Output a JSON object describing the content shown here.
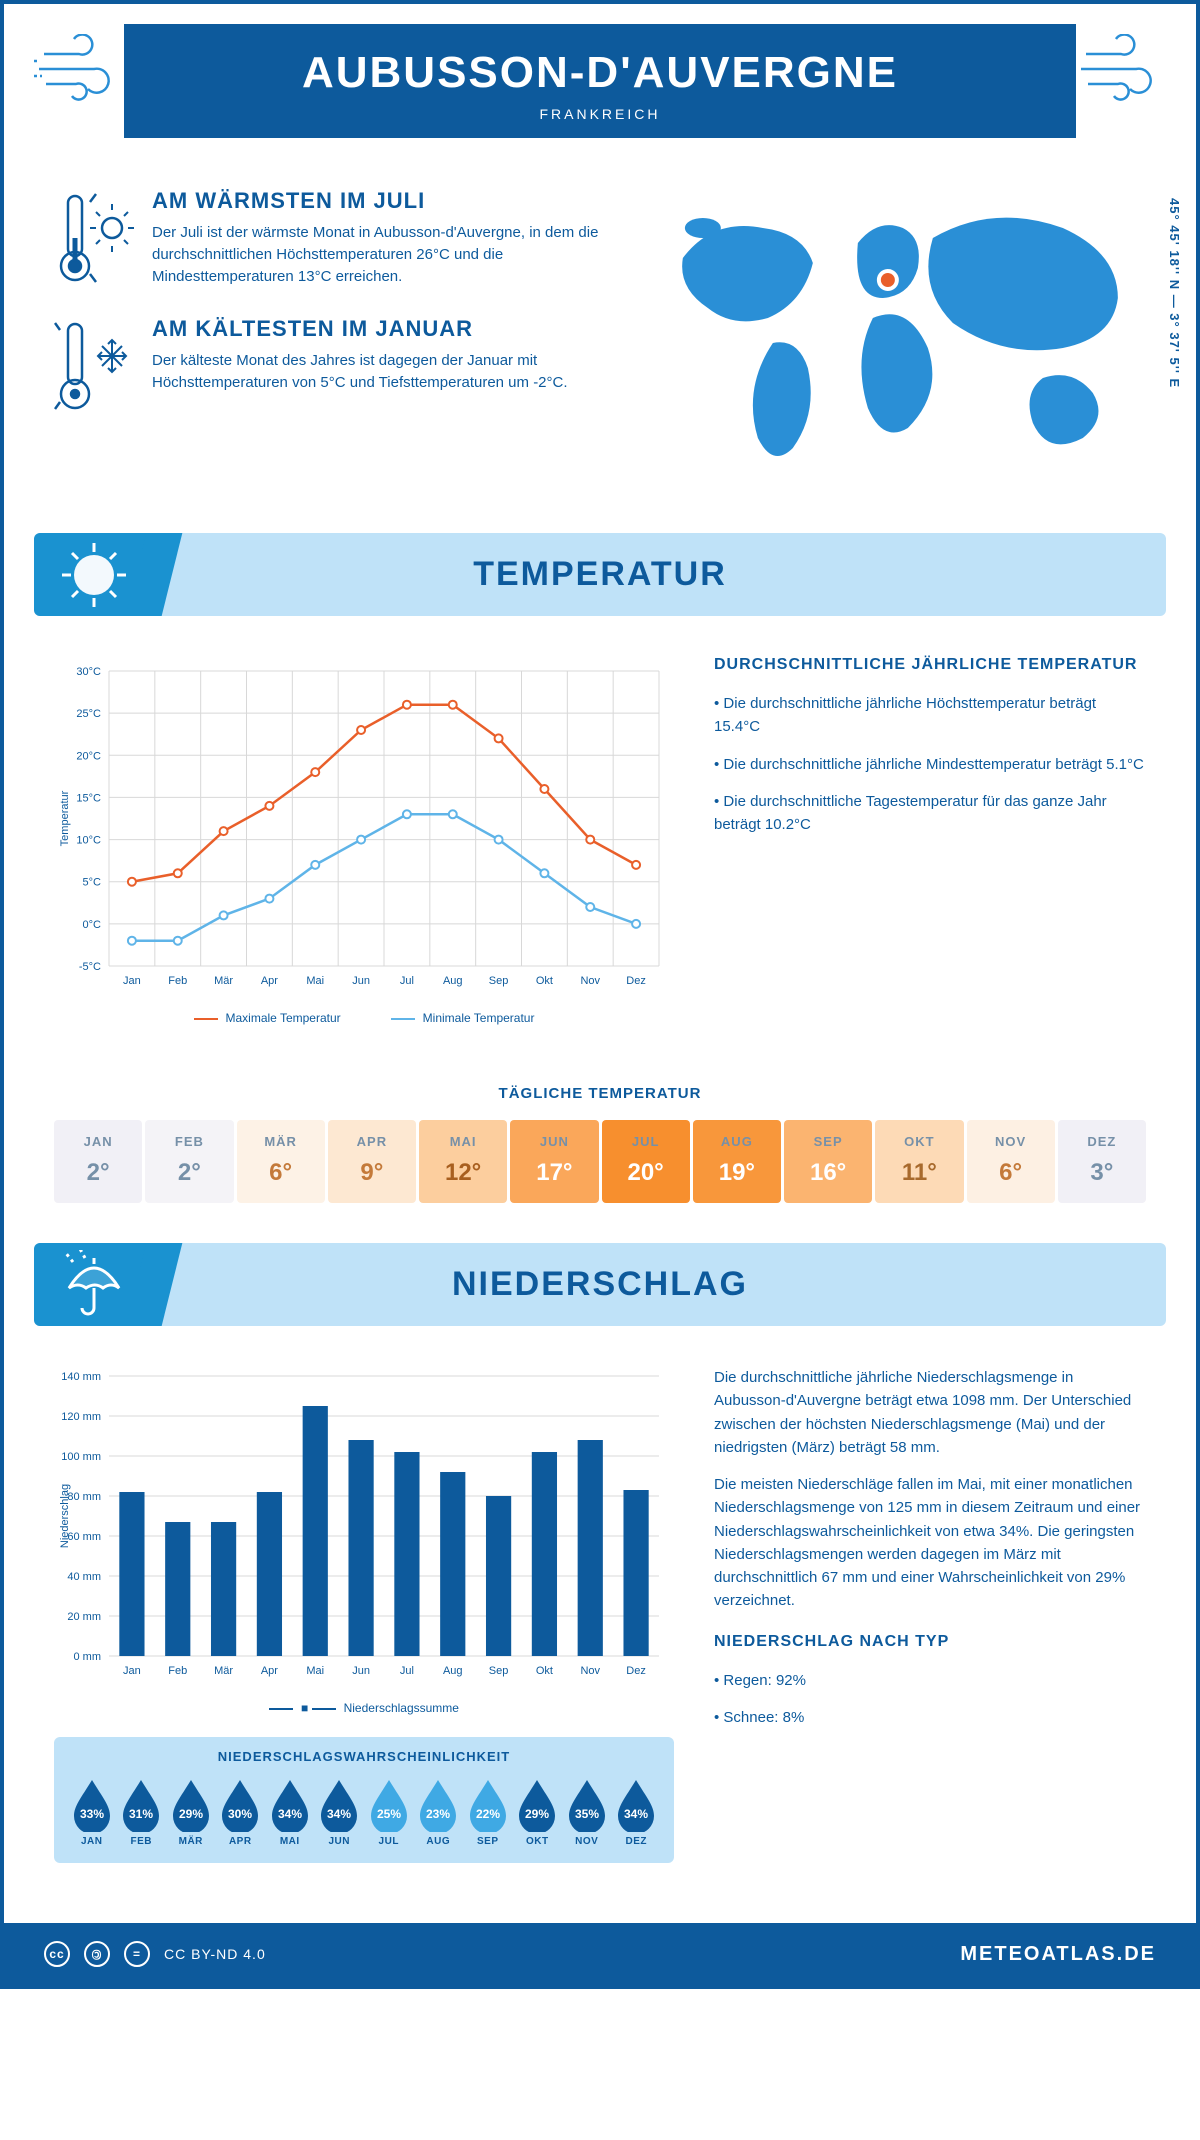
{
  "header": {
    "title": "AUBUSSON-D'AUVERGNE",
    "subtitle": "FRANKREICH"
  },
  "coords": "45° 45' 18'' N — 3° 37' 5'' E",
  "intro": {
    "warm": {
      "title": "AM WÄRMSTEN IM JULI",
      "text": "Der Juli ist der wärmste Monat in Aubusson-d'Auvergne, in dem die durchschnittlichen Höchsttemperaturen 26°C und die Mindesttemperaturen 13°C erreichen."
    },
    "cold": {
      "title": "AM KÄLTESTEN IM JANUAR",
      "text": "Der kälteste Monat des Jahres ist dagegen der Januar mit Höchsttemperaturen von 5°C und Tiefsttemperaturen um -2°C."
    }
  },
  "temp_section": {
    "title": "TEMPERATUR"
  },
  "temp_chart": {
    "months": [
      "Jan",
      "Feb",
      "Mär",
      "Apr",
      "Mai",
      "Jun",
      "Jul",
      "Aug",
      "Sep",
      "Okt",
      "Nov",
      "Dez"
    ],
    "max": [
      5,
      6,
      11,
      14,
      18,
      23,
      26,
      26,
      22,
      16,
      10,
      7
    ],
    "min": [
      -2,
      -2,
      1,
      3,
      7,
      10,
      13,
      13,
      10,
      6,
      2,
      0
    ],
    "ylim": [
      -5,
      30
    ],
    "ytick_step": 5,
    "ylabel": "Temperatur",
    "max_color": "#e95f2a",
    "min_color": "#5fb4e8",
    "grid_color": "#d8d8d8",
    "marker_fill": "#ffffff",
    "legend": {
      "max": "Maximale Temperatur",
      "min": "Minimale Temperatur"
    }
  },
  "temp_text": {
    "title": "DURCHSCHNITTLICHE JÄHRLICHE TEMPERATUR",
    "l1": "• Die durchschnittliche jährliche Höchsttemperatur beträgt 15.4°C",
    "l2": "• Die durchschnittliche jährliche Mindesttemperatur beträgt 5.1°C",
    "l3": "• Die durchschnittliche Tagestemperatur für das ganze Jahr beträgt 10.2°C"
  },
  "daily_temp": {
    "title": "TÄGLICHE TEMPERATUR",
    "months": [
      "JAN",
      "FEB",
      "MÄR",
      "APR",
      "MAI",
      "JUN",
      "JUL",
      "AUG",
      "SEP",
      "OKT",
      "NOV",
      "DEZ"
    ],
    "values": [
      "2°",
      "2°",
      "6°",
      "9°",
      "12°",
      "17°",
      "20°",
      "19°",
      "16°",
      "11°",
      "6°",
      "3°"
    ],
    "bg_colors": [
      "#f1f0f6",
      "#f4f3f7",
      "#fdf2e6",
      "#fde8d2",
      "#fcce9e",
      "#faa75a",
      "#f78f2e",
      "#f8973b",
      "#fbb470",
      "#fddab6",
      "#fdf0e3",
      "#f1f0f6"
    ],
    "text_colors": [
      "#7690a8",
      "#7690a8",
      "#c47a3a",
      "#c47a3a",
      "#a85f1f",
      "#ffffff",
      "#ffffff",
      "#ffffff",
      "#ffffff",
      "#a86a2d",
      "#c47a3a",
      "#7690a8"
    ]
  },
  "precip_section": {
    "title": "NIEDERSCHLAG"
  },
  "precip_chart": {
    "months": [
      "Jan",
      "Feb",
      "Mär",
      "Apr",
      "Mai",
      "Jun",
      "Jul",
      "Aug",
      "Sep",
      "Okt",
      "Nov",
      "Dez"
    ],
    "values": [
      82,
      67,
      67,
      82,
      125,
      108,
      102,
      92,
      80,
      102,
      108,
      83
    ],
    "ylim": [
      0,
      140
    ],
    "ytick_step": 20,
    "ylabel": "Niederschlag",
    "bar_color": "#0d5a9c",
    "grid_color": "#d8d8d8",
    "legend": "Niederschlagssumme"
  },
  "precip_text": {
    "p1": "Die durchschnittliche jährliche Niederschlagsmenge in Aubusson-d'Auvergne beträgt etwa 1098 mm. Der Unterschied zwischen der höchsten Niederschlagsmenge (Mai) und der niedrigsten (März) beträgt 58 mm.",
    "p2": "Die meisten Niederschläge fallen im Mai, mit einer monatlichen Niederschlagsmenge von 125 mm in diesem Zeitraum und einer Niederschlagswahrscheinlichkeit von etwa 34%. Die geringsten Niederschlagsmengen werden dagegen im März mit durchschnittlich 67 mm und einer Wahrscheinlichkeit von 29% verzeichnet.",
    "type_title": "NIEDERSCHLAG NACH TYP",
    "type_l1": "• Regen: 92%",
    "type_l2": "• Schnee: 8%"
  },
  "precip_prob": {
    "title": "NIEDERSCHLAGSWAHRSCHEINLICHKEIT",
    "months": [
      "JAN",
      "FEB",
      "MÄR",
      "APR",
      "MAI",
      "JUN",
      "JUL",
      "AUG",
      "SEP",
      "OKT",
      "NOV",
      "DEZ"
    ],
    "pct": [
      "33%",
      "31%",
      "29%",
      "30%",
      "34%",
      "34%",
      "25%",
      "23%",
      "22%",
      "29%",
      "35%",
      "34%"
    ],
    "colors": [
      "#0d5a9c",
      "#0d5a9c",
      "#0d5a9c",
      "#0d5a9c",
      "#0d5a9c",
      "#0d5a9c",
      "#3fa9e4",
      "#3fa9e4",
      "#3fa9e4",
      "#0d5a9c",
      "#0d5a9c",
      "#0d5a9c"
    ]
  },
  "footer": {
    "license": "CC BY-ND 4.0",
    "brand": "METEOATLAS.DE"
  }
}
